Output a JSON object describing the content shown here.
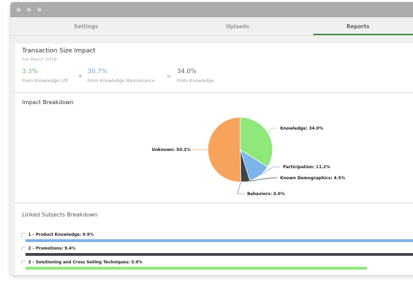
{
  "tabs": [
    {
      "label": "Settings"
    },
    {
      "label": "Uploads"
    },
    {
      "label": "Reports",
      "active": true
    }
  ],
  "summary": {
    "title": "Transaction Size Impact",
    "subtitle": "For March 2018",
    "stats": [
      {
        "value": "3.3%",
        "label": "From Knowledge Lift",
        "color": "#6cbf6c"
      },
      {
        "value": "30.7%",
        "label": "From Knowledge Maintenance",
        "color": "#6fa0e0"
      },
      {
        "value": "34.0%",
        "label": "From Knowledge",
        "color": "#666666"
      }
    ],
    "plus": "+",
    "equals": "="
  },
  "impact": {
    "title": "Impact Breakdown"
  },
  "linked": {
    "title": "Linked Subjects Breakdown"
  },
  "chart_data": [
    {
      "type": "pie",
      "slices": [
        {
          "label": "Knowledge: 34.0%",
          "name": "Knowledge",
          "value": 34.0,
          "color": "#90e87a"
        },
        {
          "label": "Participation: 11.2%",
          "name": "Participation",
          "value": 11.2,
          "color": "#7cb4ec"
        },
        {
          "label": "Known Demographics: 4.5%",
          "name": "Known Demographics",
          "value": 4.5,
          "color": "#434348"
        },
        {
          "label": "Behaviors: 0.0%",
          "name": "Behaviors",
          "value": 0.0,
          "color": "#8085e9"
        },
        {
          "label": "Unknown: 50.3%",
          "name": "Unknown",
          "value": 50.3,
          "color": "#f7a35c"
        }
      ]
    },
    {
      "type": "bar",
      "orientation": "horizontal",
      "bars": [
        {
          "label": "1 – Product Knowledge: 9.9%",
          "value": 9.9,
          "color": "#7cb4ec"
        },
        {
          "label": "2 – Promotions: 9.4%",
          "value": 9.4,
          "color": "#434348"
        },
        {
          "label": "3 – Solutioning and Cross Selling Techniques: 5.9%",
          "value": 5.9,
          "color": "#90e87a"
        }
      ]
    }
  ]
}
